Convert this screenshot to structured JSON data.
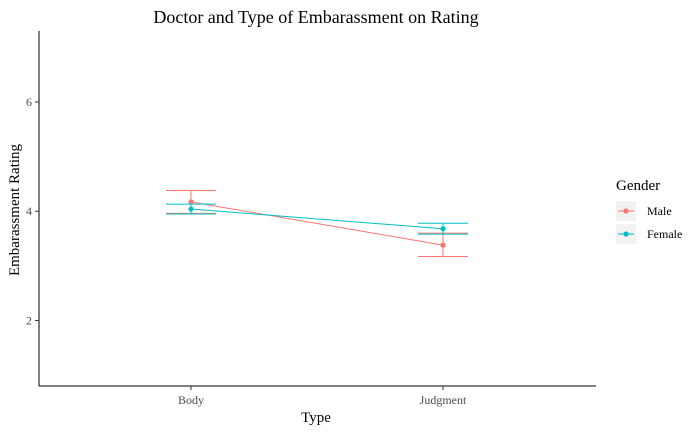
{
  "chart_data": {
    "type": "line",
    "title": "Doctor and Type of Embarassment on Rating",
    "xlabel": "Type",
    "ylabel": "Embarassment Rating",
    "categories": [
      "Body",
      "Judgment"
    ],
    "ylim": [
      0.8,
      7.3
    ],
    "yticks": [
      2,
      4,
      6
    ],
    "grid": false,
    "legend": {
      "title": "Gender",
      "placement": "right"
    },
    "series": [
      {
        "name": "Male",
        "color": "#F8766D",
        "values": [
          4.17,
          3.38
        ],
        "error_low": [
          3.96,
          3.17
        ],
        "error_high": [
          4.38,
          3.6
        ]
      },
      {
        "name": "Female",
        "color": "#00BFC4",
        "values": [
          4.04,
          3.68
        ],
        "error_low": [
          3.95,
          3.58
        ],
        "error_high": [
          4.13,
          3.78
        ]
      }
    ]
  }
}
